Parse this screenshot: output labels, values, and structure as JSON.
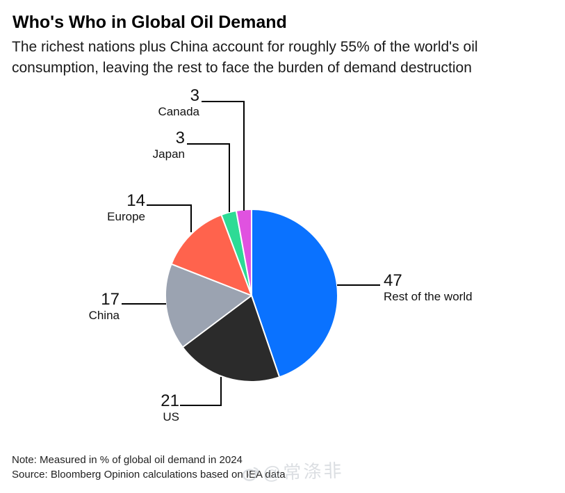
{
  "header": {
    "title": "Who's Who in Global Oil Demand",
    "subtitle": "The richest nations plus China account for roughly 55% of the world's oil\nconsumption, leaving the rest to face the burden of demand destruction"
  },
  "chart_data": {
    "type": "pie",
    "title": "Who's Who in Global Oil Demand",
    "unit": "% of global oil demand in 2024",
    "start_angle_deg": 0,
    "direction": "clockwise",
    "slice_gap_color": "#ffffff",
    "slices": [
      {
        "label": "Rest of the world",
        "value": 47,
        "color": "#0a72ff"
      },
      {
        "label": "US",
        "value": 21,
        "color": "#2b2b2b"
      },
      {
        "label": "China",
        "value": 17,
        "color": "#9ba3b1"
      },
      {
        "label": "Europe",
        "value": 14,
        "color": "#ff634d"
      },
      {
        "label": "Japan",
        "value": 3,
        "color": "#2ddb95"
      },
      {
        "label": "Canada",
        "value": 3,
        "color": "#e052e0"
      }
    ]
  },
  "footer": {
    "note": "Note: Measured in % of global oil demand in 2024",
    "source": "Source: Bloomberg Opinion calculations based on IEA data",
    "watermark": "@常涤非"
  }
}
